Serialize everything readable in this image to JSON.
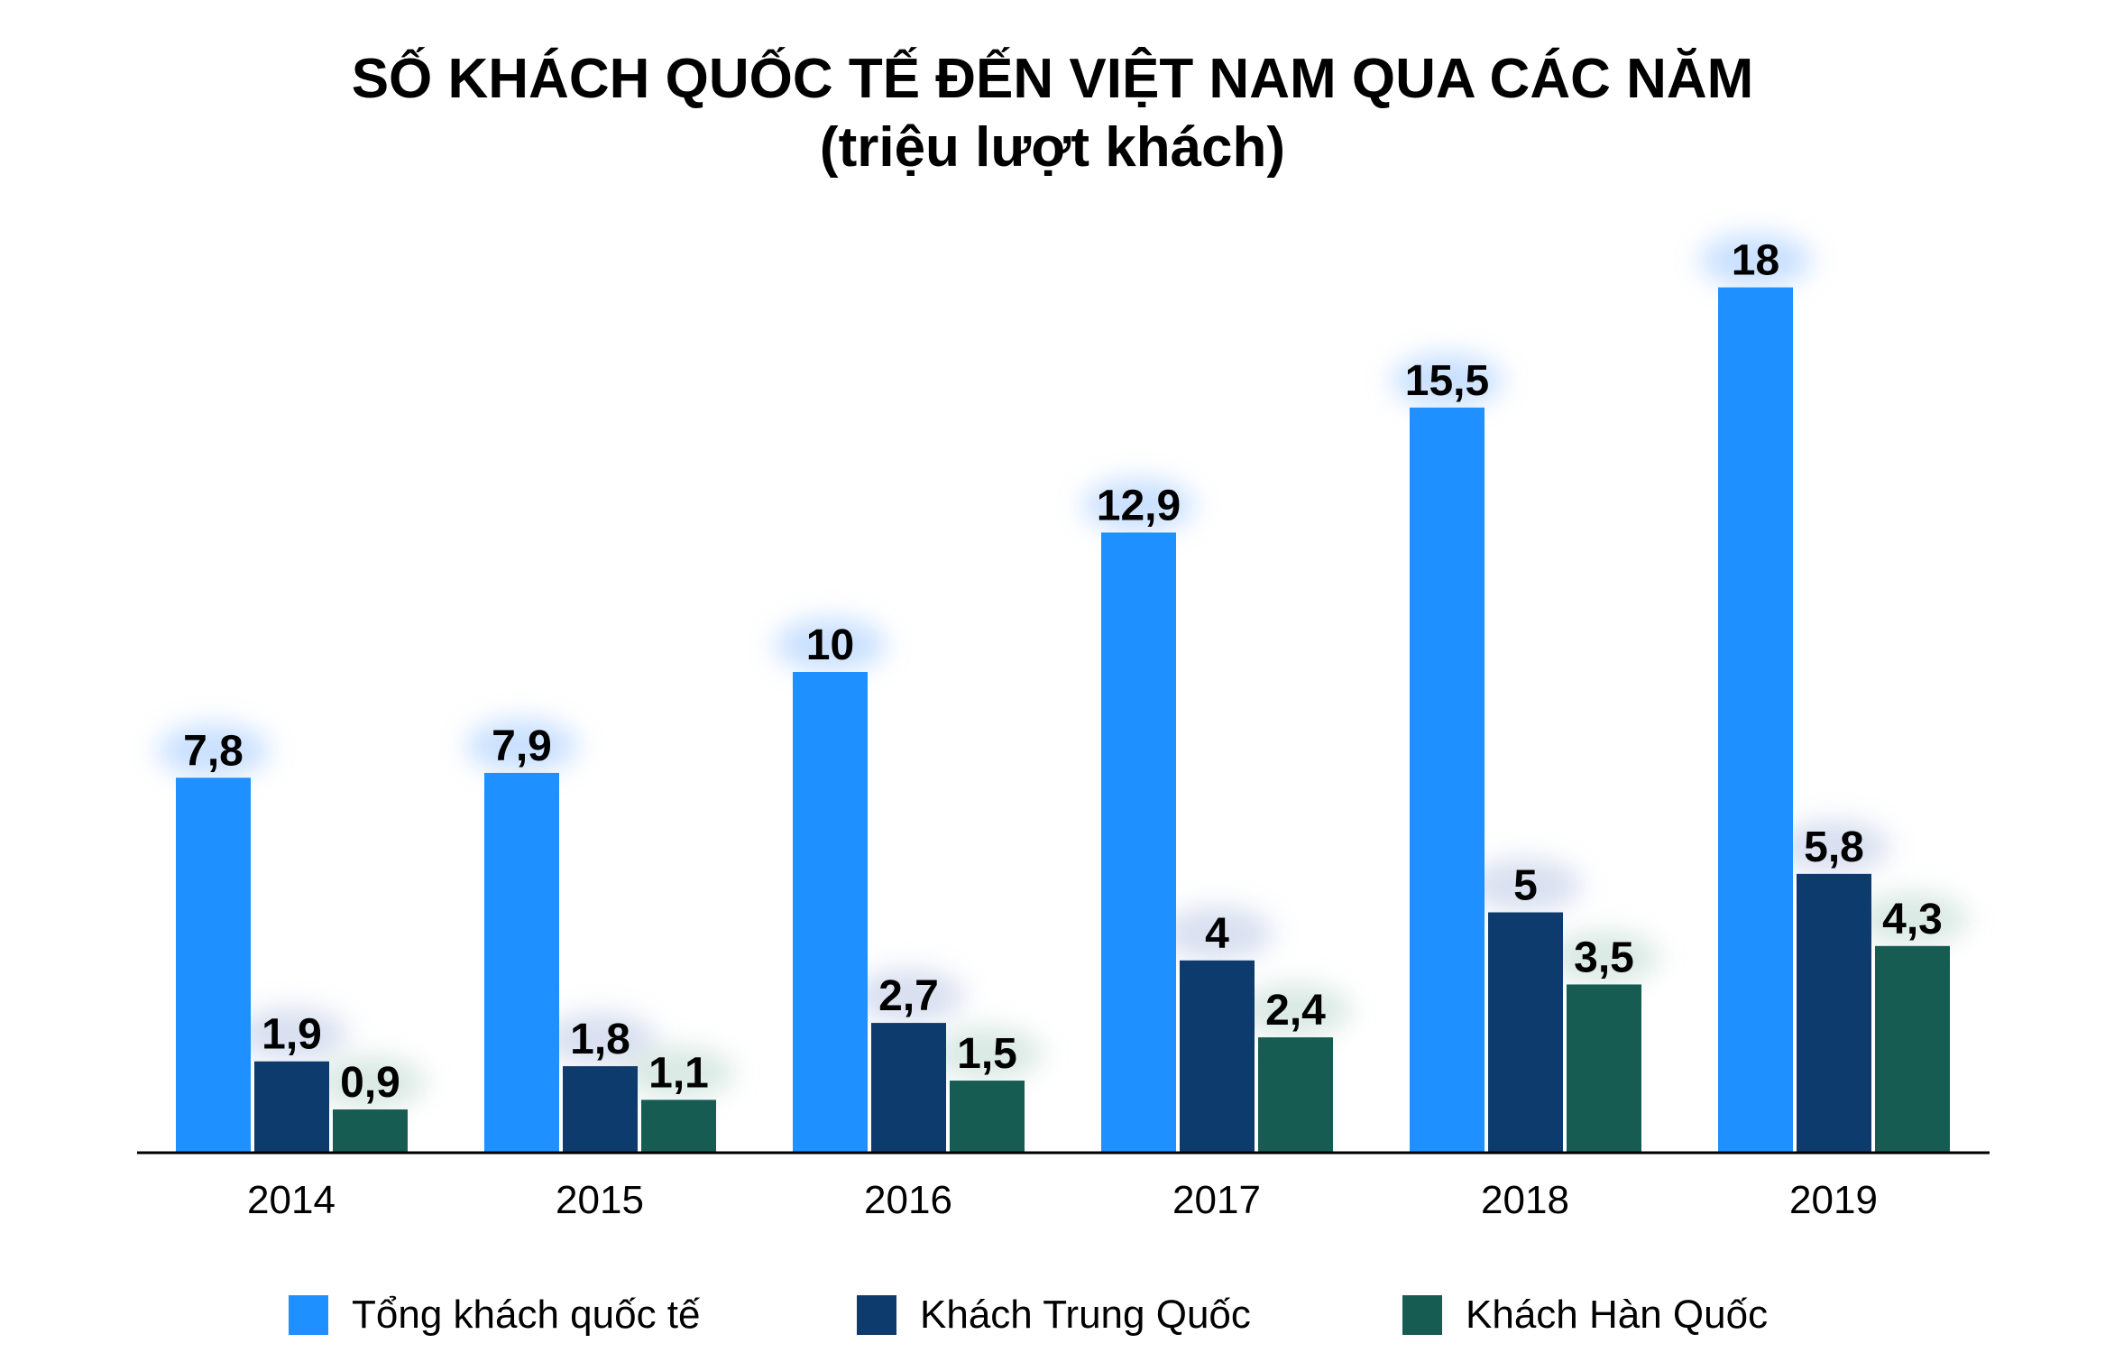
{
  "chart_data": {
    "type": "bar",
    "title": "SỐ KHÁCH QUỐC TẾ ĐẾN VIỆT NAM QUA CÁC NĂM",
    "subtitle": "(triệu lượt khách)",
    "categories": [
      "2014",
      "2015",
      "2016",
      "2017",
      "2018",
      "2019"
    ],
    "series": [
      {
        "name": "Tổng khách quốc tế",
        "color": "#1e90ff",
        "values": [
          7.8,
          7.9,
          10,
          12.9,
          15.5,
          18
        ],
        "labels": [
          "7,8",
          "7,9",
          "10",
          "12,9",
          "15,5",
          "18"
        ]
      },
      {
        "name": "Khách Trung Quốc",
        "color": "#0d3b6e",
        "values": [
          1.9,
          1.8,
          2.7,
          4,
          5,
          5.8
        ],
        "labels": [
          "1,9",
          "1,8",
          "2,7",
          "4",
          "5",
          "5,8"
        ]
      },
      {
        "name": "Khách Hàn Quốc",
        "color": "#175c52",
        "values": [
          0.9,
          1.1,
          1.5,
          2.4,
          3.5,
          4.3
        ],
        "labels": [
          "0,9",
          "1,1",
          "1,5",
          "2,4",
          "3,5",
          "4,3"
        ]
      }
    ],
    "ylim": [
      0,
      18
    ],
    "grid": false,
    "legend_position": "bottom"
  }
}
